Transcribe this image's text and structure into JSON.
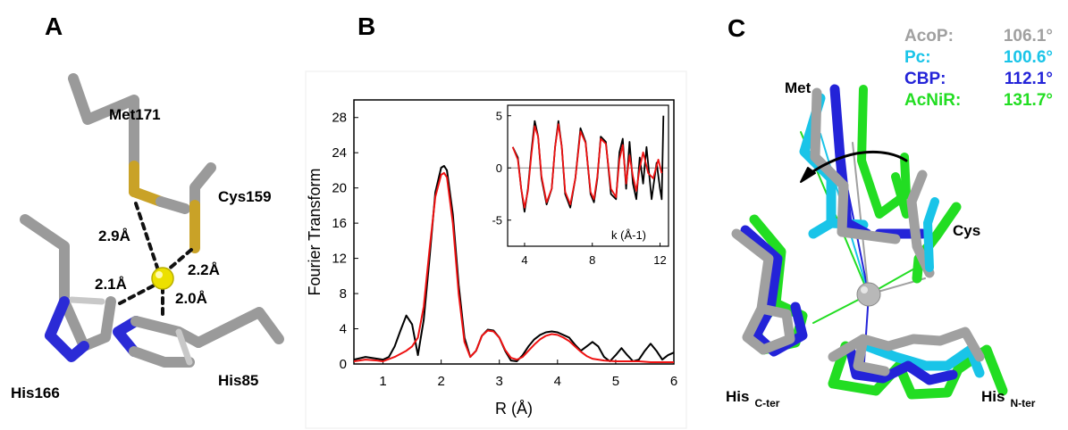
{
  "panels": {
    "a": "A",
    "b": "B",
    "c": "C"
  },
  "panel_a": {
    "residues": {
      "met": "Met171",
      "cys": "Cys159",
      "his1": "His166",
      "his2": "His85"
    },
    "distances": {
      "d_met": "2.9Å",
      "d_cys": "2.2Å",
      "d_his1": "2.1Å",
      "d_his2": "2.0Å"
    },
    "colors": {
      "carbon": "#9a9a9a",
      "sulfur": "#c9a227",
      "nitrogen": "#2b2bd6",
      "copper": "#e8e000"
    }
  },
  "panel_c": {
    "labels": {
      "met": "Met",
      "cys": "Cys",
      "his_c": "His",
      "his_c_sub": "C-ter",
      "his_n": "His",
      "his_n_sub": "N-ter"
    },
    "legend": [
      {
        "name": "AcoP:",
        "value": "106.1°",
        "color": "#a0a0a0"
      },
      {
        "name": "Pc:",
        "value": "100.6°",
        "color": "#19c4e8"
      },
      {
        "name": "CBP:",
        "value": "112.1°",
        "color": "#2323d8"
      },
      {
        "name": "AcNiR:",
        "value": "131.7°",
        "color": "#22dd22"
      }
    ]
  },
  "chart_data": {
    "type": "line",
    "xlabel": "R (Å)",
    "ylabel": "Fourier Transform",
    "xlim": [
      0.5,
      6
    ],
    "ylim": [
      0,
      30
    ],
    "xticks": [
      1,
      2,
      3,
      4,
      5,
      6
    ],
    "yticks": [
      0,
      4,
      8,
      12,
      16,
      20,
      24,
      28
    ],
    "series": [
      {
        "color": "#000000",
        "x": [
          0.5,
          0.7,
          0.9,
          1.0,
          1.1,
          1.2,
          1.3,
          1.4,
          1.5,
          1.6,
          1.7,
          1.8,
          1.9,
          2.0,
          2.05,
          2.1,
          2.2,
          2.3,
          2.4,
          2.5,
          2.6,
          2.7,
          2.8,
          2.9,
          3.0,
          3.1,
          3.2,
          3.3,
          3.4,
          3.5,
          3.6,
          3.7,
          3.8,
          3.9,
          4.0,
          4.1,
          4.2,
          4.3,
          4.4,
          4.5,
          4.6,
          4.7,
          4.8,
          4.9,
          5.0,
          5.1,
          5.2,
          5.3,
          5.4,
          5.5,
          5.6,
          5.7,
          5.8,
          5.9,
          6.0
        ],
        "y": [
          0.5,
          0.8,
          0.6,
          0.5,
          0.8,
          2.0,
          3.8,
          5.5,
          4.5,
          1.0,
          5.0,
          12.0,
          19.5,
          22.3,
          22.5,
          22.0,
          17.0,
          9.0,
          3.0,
          0.8,
          1.5,
          3.2,
          3.9,
          3.8,
          3.0,
          1.5,
          0.4,
          0.3,
          1.0,
          2.0,
          2.8,
          3.3,
          3.6,
          3.7,
          3.6,
          3.3,
          3.0,
          2.2,
          1.5,
          2.0,
          2.5,
          2.0,
          0.8,
          0.3,
          1.0,
          1.8,
          1.0,
          0.3,
          0.5,
          1.5,
          2.3,
          1.5,
          0.5,
          1.0,
          1.3
        ]
      },
      {
        "color": "#ee1111",
        "x": [
          0.5,
          0.7,
          0.9,
          1.0,
          1.2,
          1.4,
          1.5,
          1.6,
          1.7,
          1.8,
          1.9,
          2.0,
          2.05,
          2.1,
          2.2,
          2.3,
          2.4,
          2.5,
          2.6,
          2.7,
          2.8,
          2.9,
          3.0,
          3.1,
          3.2,
          3.3,
          3.4,
          3.5,
          3.6,
          3.7,
          3.8,
          3.9,
          4.0,
          4.1,
          4.2,
          4.3,
          4.4,
          4.5,
          4.6,
          4.8,
          5.0,
          5.2,
          5.4,
          5.6,
          5.8,
          6.0
        ],
        "y": [
          0.3,
          0.5,
          0.4,
          0.3,
          0.8,
          1.5,
          2.0,
          3.0,
          6.5,
          13.0,
          19.0,
          21.5,
          21.7,
          21.2,
          16.0,
          8.0,
          2.5,
          0.8,
          1.5,
          3.2,
          3.8,
          3.7,
          3.0,
          1.6,
          0.7,
          0.5,
          0.8,
          1.5,
          2.2,
          2.8,
          3.2,
          3.4,
          3.3,
          3.0,
          2.6,
          2.0,
          1.4,
          0.9,
          0.6,
          0.4,
          0.3,
          0.3,
          0.3,
          0.2,
          0.2,
          0.2
        ]
      }
    ],
    "inset": {
      "type": "line",
      "xlabel": "k (Å-1)",
      "xlim": [
        3,
        12.5
      ],
      "ylim": [
        -7.5,
        6
      ],
      "xticks": [
        4,
        8,
        12
      ],
      "yticks": [
        -5,
        0,
        5
      ],
      "series": [
        {
          "color": "#000000",
          "x": [
            3.3,
            3.6,
            3.8,
            4.0,
            4.2,
            4.4,
            4.6,
            4.8,
            5.0,
            5.3,
            5.6,
            5.8,
            6.0,
            6.2,
            6.4,
            6.7,
            7.0,
            7.3,
            7.6,
            7.9,
            8.1,
            8.3,
            8.5,
            8.8,
            9.1,
            9.4,
            9.6,
            9.8,
            10.0,
            10.2,
            10.4,
            10.6,
            10.8,
            11.0,
            11.2,
            11.5,
            11.8,
            12.0,
            12.1,
            12.2
          ],
          "y": [
            2.0,
            1.0,
            -2.0,
            -4.2,
            -2.0,
            1.5,
            4.5,
            3.0,
            -1.0,
            -3.5,
            -2.0,
            2.0,
            4.5,
            2.0,
            -2.5,
            -3.8,
            -1.0,
            3.8,
            2.5,
            -2.5,
            -3.3,
            -1.0,
            3.0,
            2.5,
            -2.5,
            -3.0,
            1.5,
            2.8,
            -2.0,
            2.5,
            -1.5,
            -3.0,
            1.0,
            -1.5,
            2.0,
            -3.0,
            0.5,
            -2.0,
            -3.0,
            5.0
          ]
        },
        {
          "color": "#ee1111",
          "x": [
            3.3,
            3.6,
            3.8,
            4.0,
            4.2,
            4.4,
            4.6,
            4.8,
            5.0,
            5.3,
            5.6,
            5.8,
            6.0,
            6.2,
            6.4,
            6.7,
            7.0,
            7.3,
            7.6,
            7.9,
            8.1,
            8.3,
            8.5,
            8.8,
            9.1,
            9.4,
            9.6,
            9.8,
            10.0,
            10.2,
            10.4,
            10.6,
            10.8,
            11.0,
            11.3,
            11.6,
            11.9,
            12.1
          ],
          "y": [
            2.0,
            0.8,
            -2.0,
            -3.8,
            -2.2,
            1.2,
            4.0,
            3.0,
            -0.8,
            -3.3,
            -2.0,
            2.0,
            4.2,
            2.0,
            -2.3,
            -3.5,
            -1.0,
            3.5,
            2.4,
            -2.3,
            -3.0,
            -0.8,
            2.8,
            2.3,
            -2.0,
            -2.8,
            0.8,
            2.2,
            -1.5,
            1.2,
            -0.8,
            -2.2,
            0.0,
            1.5,
            -0.5,
            -1.0,
            0.8,
            -0.5
          ]
        }
      ]
    }
  }
}
